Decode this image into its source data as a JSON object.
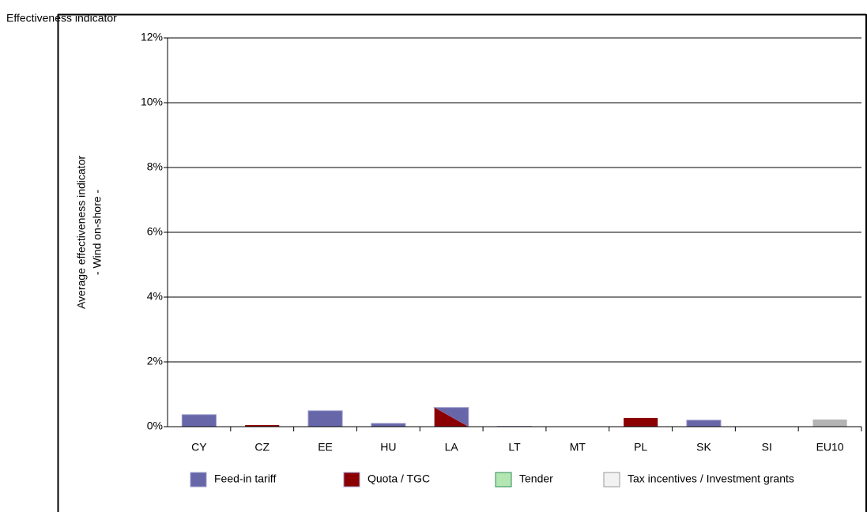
{
  "chart_data": {
    "type": "bar",
    "title": "Effectiveness indicator",
    "y_label": [
      "Average effectiveness indicator",
      "- Wind on-shore -"
    ],
    "categories": [
      "CY",
      "CZ",
      "EE",
      "HU",
      "LA",
      "LT",
      "MT",
      "PL",
      "SK",
      "SI",
      "EU10"
    ],
    "values": [
      0.37,
      0.05,
      0.49,
      0.1,
      0.59,
      0.01,
      0,
      0.27,
      0.2,
      0,
      0.22
    ],
    "bar_colors": [
      "#6666a8",
      "#8b0000",
      "#6666a8",
      "#6666a8",
      [
        "#6666a8",
        "#8b0000"
      ],
      "#6666a8",
      "#6666a8",
      "#8b0000",
      "#6666a8",
      "#6666a8",
      "#b4b4b4"
    ],
    "ylim": [
      0,
      12
    ],
    "yticks": [
      {
        "value": 0,
        "label": "0%"
      },
      {
        "value": 2,
        "label": "2%"
      },
      {
        "value": 4,
        "label": "4%"
      },
      {
        "value": 6,
        "label": "6%"
      },
      {
        "value": 8,
        "label": "8%"
      },
      {
        "value": 10,
        "label": "10%"
      },
      {
        "value": 12,
        "label": "12%"
      }
    ],
    "grid": true,
    "legend": [
      {
        "name": "Feed-in tariff",
        "color": "#6666a8"
      },
      {
        "name": "Quota / TGC",
        "color": "#8b0000"
      },
      {
        "name": "Tender",
        "color": "#b3e6b3"
      },
      {
        "name": "Tax incentives / Investment grants",
        "color": "#f2f2f2"
      }
    ]
  }
}
